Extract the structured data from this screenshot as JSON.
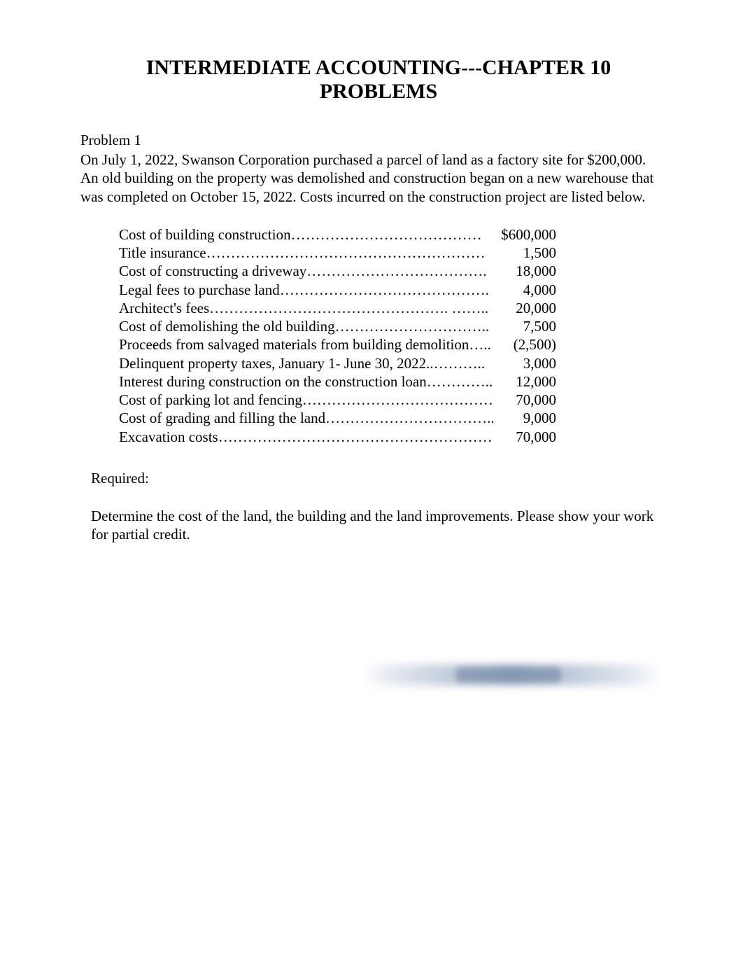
{
  "title": "INTERMEDIATE ACCOUNTING---CHAPTER 10 PROBLEMS",
  "problem_label": "Problem 1",
  "intro": "On July 1, 2022, Swanson Corporation purchased a parcel of land as a factory site for $200,000. An old building on the property was demolished and construction began on a new warehouse that was completed on October 15, 2022.  Costs incurred on the construction project are listed below.",
  "costs": [
    {
      "label": "Cost of building construction…………………………………",
      "value": "$600,000"
    },
    {
      "label": "Title insurance…………………………………………………",
      "value": "1,500"
    },
    {
      "label": "Cost of constructing a driveway……………………………….",
      "value": "18,000"
    },
    {
      "label": "Legal fees to purchase land…………………………………….",
      "value": "4,000"
    },
    {
      "label": "Architect's fees…………………………………………. ……..",
      "value": "20,000"
    },
    {
      "label": "Cost of demolishing the old building…………………………..",
      "value": "7,500"
    },
    {
      "label": "Proceeds from salvaged materials from building demolition…..",
      "value": "(2,500)"
    },
    {
      "label": "Delinquent  property taxes, January 1- June 30, 2022..………..",
      "value": "3,000"
    },
    {
      "label": "Interest during construction on the construction loan…………..",
      "value": "12,000"
    },
    {
      "label": "Cost of parking lot and fencing…………………………………",
      "value": "70,000"
    },
    {
      "label": "Cost of grading and filling the land……………………………..",
      "value": "9,000"
    },
    {
      "label": "Excavation costs…………………………………………………",
      "value": "70,000"
    }
  ],
  "required_label": "Required:",
  "required_text": "Determine the cost of the land, the building and the land improvements.  Please show your work for partial credit."
}
